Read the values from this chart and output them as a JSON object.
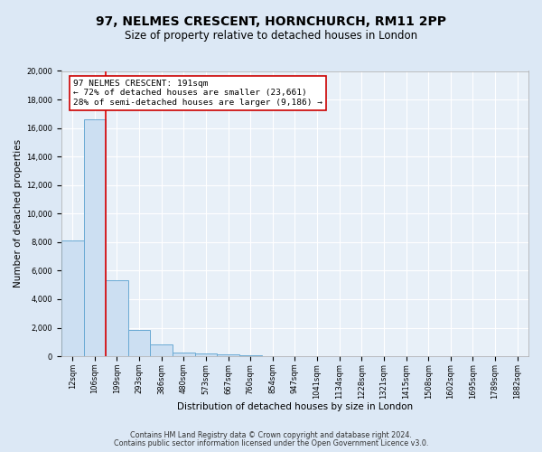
{
  "title": "97, NELMES CRESCENT, HORNCHURCH, RM11 2PP",
  "subtitle": "Size of property relative to detached houses in London",
  "xlabel": "Distribution of detached houses by size in London",
  "ylabel": "Number of detached properties",
  "bin_labels": [
    "12sqm",
    "106sqm",
    "199sqm",
    "293sqm",
    "386sqm",
    "480sqm",
    "573sqm",
    "667sqm",
    "760sqm",
    "854sqm",
    "947sqm",
    "1041sqm",
    "1134sqm",
    "1228sqm",
    "1321sqm",
    "1415sqm",
    "1508sqm",
    "1602sqm",
    "1695sqm",
    "1789sqm",
    "1882sqm"
  ],
  "bar_heights": [
    8100,
    16600,
    5300,
    1850,
    800,
    280,
    170,
    100,
    80,
    0,
    0,
    0,
    0,
    0,
    0,
    0,
    0,
    0,
    0,
    0,
    0
  ],
  "bar_color": "#ccdff2",
  "bar_edge_color": "#6aaad4",
  "property_line_color": "#dd0000",
  "annotation_title": "97 NELMES CRESCENT: 191sqm",
  "annotation_line1": "← 72% of detached houses are smaller (23,661)",
  "annotation_line2": "28% of semi-detached houses are larger (9,186) →",
  "annotation_box_color": "#ffffff",
  "annotation_box_edge_color": "#cc0000",
  "ylim": [
    0,
    20000
  ],
  "yticks": [
    0,
    2000,
    4000,
    6000,
    8000,
    10000,
    12000,
    14000,
    16000,
    18000,
    20000
  ],
  "footer_line1": "Contains HM Land Registry data © Crown copyright and database right 2024.",
  "footer_line2": "Contains public sector information licensed under the Open Government Licence v3.0.",
  "outer_bg_color": "#dce8f5",
  "plot_bg_color": "#e8f0f8",
  "grid_color": "#ffffff",
  "title_fontsize": 10,
  "subtitle_fontsize": 8.5,
  "axis_label_fontsize": 7.5,
  "tick_fontsize": 6,
  "annotation_fontsize": 6.8,
  "footer_fontsize": 5.8
}
